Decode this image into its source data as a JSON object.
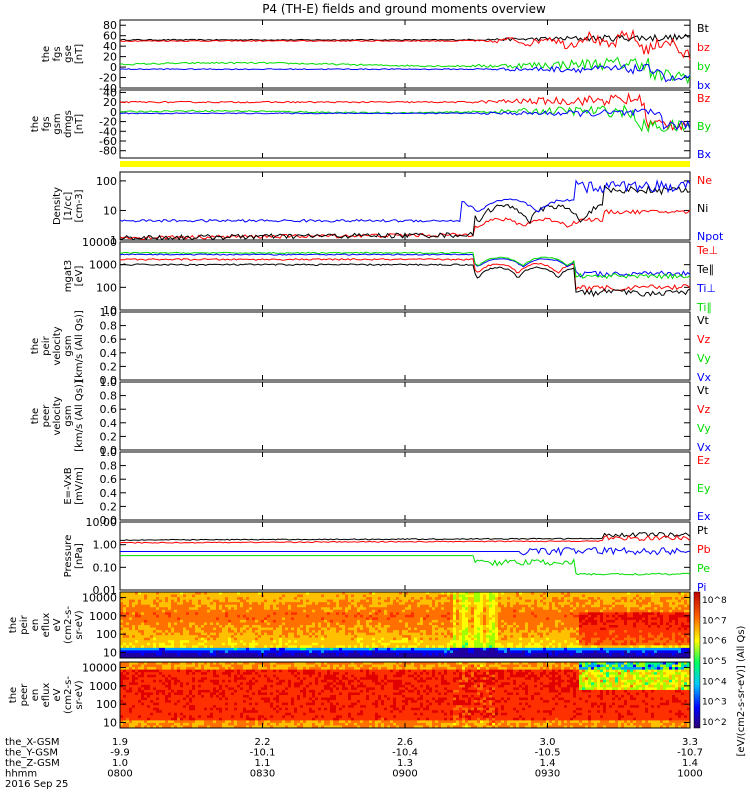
{
  "title": "P4 (TH-E) fields and ground moments overview",
  "colors": {
    "black": "#000000",
    "red": "#ff0000",
    "green": "#00dd00",
    "blue": "#0000ff",
    "yellow": "#ffff00"
  },
  "chart_data": [
    {
      "type": "line",
      "panel": "fgs_gse",
      "ylabel": [
        "the",
        "fgs",
        "gse",
        "[nT]"
      ],
      "ticks": [
        "80",
        "60",
        "40",
        "20",
        "0",
        "-20",
        "-40"
      ],
      "ylim": [
        -40,
        90
      ],
      "series": [
        {
          "name": "Bt",
          "color": "#000000"
        },
        {
          "name": "bz",
          "color": "#ff0000"
        },
        {
          "name": "by",
          "color": "#00dd00"
        },
        {
          "name": "bx",
          "color": "#0000ff"
        }
      ]
    },
    {
      "type": "line",
      "panel": "fgs_gsm",
      "ylabel": [
        "the",
        "fgs",
        "gsm",
        "dmgs",
        "[nT]"
      ],
      "ticks": [
        "40",
        "20",
        "0",
        "-20",
        "-40",
        "-60",
        "-80"
      ],
      "ylim": [
        -95,
        45
      ],
      "series": [
        {
          "name": "Bz",
          "color": "#ff0000"
        },
        {
          "name": "By",
          "color": "#00dd00"
        },
        {
          "name": "Bx",
          "color": "#0000ff"
        }
      ]
    },
    {
      "type": "line",
      "panel": "density",
      "ylabel": [
        "Density",
        "[1/cc]",
        "[cm-3]"
      ],
      "ticks": [
        "100",
        "10",
        "1"
      ],
      "ylim": [
        1,
        200
      ],
      "log": true,
      "series": [
        {
          "name": "Ne",
          "color": "#ff0000"
        },
        {
          "name": "Ni",
          "color": "#000000"
        },
        {
          "name": "Npot",
          "color": "#0000ff"
        }
      ]
    },
    {
      "type": "line",
      "panel": "temperature",
      "ylabel": [
        "mgat3",
        "[eV]"
      ],
      "ticks": [
        "10000",
        "1000",
        "100",
        "10"
      ],
      "ylim": [
        10,
        10000
      ],
      "log": true,
      "series": [
        {
          "name": "Te⊥",
          "color": "#ff0000"
        },
        {
          "name": "Te∥",
          "color": "#000000"
        },
        {
          "name": "Ti⊥",
          "color": "#0000ff"
        },
        {
          "name": "Ti∥",
          "color": "#00dd00"
        }
      ]
    },
    {
      "type": "line",
      "panel": "peir_velocity",
      "ylabel": [
        "the",
        "peir",
        "velocity",
        "gsm",
        "[km/s (All Qs)]"
      ],
      "ticks": [
        "1.0",
        "0.8",
        "0.6",
        "0.4",
        "0.2",
        "0.0"
      ],
      "ylim": [
        0,
        1
      ],
      "series": [
        {
          "name": "Vt",
          "color": "#000000"
        },
        {
          "name": "Vz",
          "color": "#ff0000"
        },
        {
          "name": "Vy",
          "color": "#00dd00"
        },
        {
          "name": "Vx",
          "color": "#0000ff"
        }
      ]
    },
    {
      "type": "line",
      "panel": "peer_velocity",
      "ylabel": [
        "the",
        "peer",
        "velocity",
        "gsm",
        "[km/s (All Qs)]"
      ],
      "ticks": [
        "1.0",
        "0.8",
        "0.6",
        "0.4",
        "0.2",
        "0.0"
      ],
      "ylim": [
        0,
        1
      ],
      "series": [
        {
          "name": "Vt",
          "color": "#000000"
        },
        {
          "name": "Vz",
          "color": "#ff0000"
        },
        {
          "name": "Vy",
          "color": "#00dd00"
        },
        {
          "name": "Vx",
          "color": "#0000ff"
        }
      ]
    },
    {
      "type": "line",
      "panel": "efield",
      "ylabel": [
        "E=-VxB",
        "[mV/m]"
      ],
      "ticks": [
        "1.0",
        "0.8",
        "0.6",
        "0.4",
        "0.2",
        "0.0"
      ],
      "ylim": [
        0,
        1
      ],
      "series": [
        {
          "name": "Ez",
          "color": "#ff0000"
        },
        {
          "name": "Ey",
          "color": "#00dd00"
        },
        {
          "name": "Ex",
          "color": "#0000ff"
        }
      ]
    },
    {
      "type": "line",
      "panel": "pressure",
      "ylabel": [
        "Pressure",
        "[nPa]"
      ],
      "ticks": [
        "10.00",
        "1.00",
        "0.10",
        "0.01"
      ],
      "ylim": [
        0.01,
        10
      ],
      "log": true,
      "series": [
        {
          "name": "Pt",
          "color": "#000000"
        },
        {
          "name": "Pb",
          "color": "#ff0000"
        },
        {
          "name": "Pe",
          "color": "#00dd00"
        },
        {
          "name": "Pi",
          "color": "#0000ff"
        }
      ]
    },
    {
      "type": "heatmap",
      "panel": "peir_eflux",
      "ylabel": [
        "the",
        "peir",
        "en",
        "eflux",
        "eV",
        "(cm2-s-",
        "sr-eV)"
      ],
      "ticks": [
        "10000",
        "1000",
        "100",
        "10"
      ],
      "ylim": [
        5,
        20000
      ],
      "log": true
    },
    {
      "type": "heatmap",
      "panel": "peer_eflux",
      "ylabel": [
        "the",
        "peer",
        "en",
        "eflux",
        "eV",
        "(cm2-s-",
        "sr-eV)"
      ],
      "ticks": [
        "10000",
        "1000",
        "100",
        "10"
      ],
      "ylim": [
        5,
        20000
      ],
      "log": true
    }
  ],
  "colorbar": {
    "ticks": [
      "10^8",
      "10^7",
      "10^6",
      "10^5",
      "10^4",
      "10^3",
      "10^2"
    ],
    "label": "[eV/(cm2-s-sr-eV)] (All Qs)"
  },
  "xaxis": {
    "rows": [
      {
        "label": "the_X-GSM",
        "values": [
          "1.9",
          "2.2",
          "2.6",
          "3.0",
          "3.3"
        ]
      },
      {
        "label": "the_Y-GSM",
        "values": [
          "-9.9",
          "-10.1",
          "-10.4",
          "-10.5",
          "-10.7"
        ]
      },
      {
        "label": "the_Z-GSM",
        "values": [
          "1.0",
          "1.1",
          "1.3",
          "1.4",
          "1.4"
        ]
      },
      {
        "label": "hhmm",
        "values": [
          "0800",
          "0830",
          "0900",
          "0930",
          "1000"
        ]
      }
    ],
    "date": "2016 Sep 25"
  }
}
